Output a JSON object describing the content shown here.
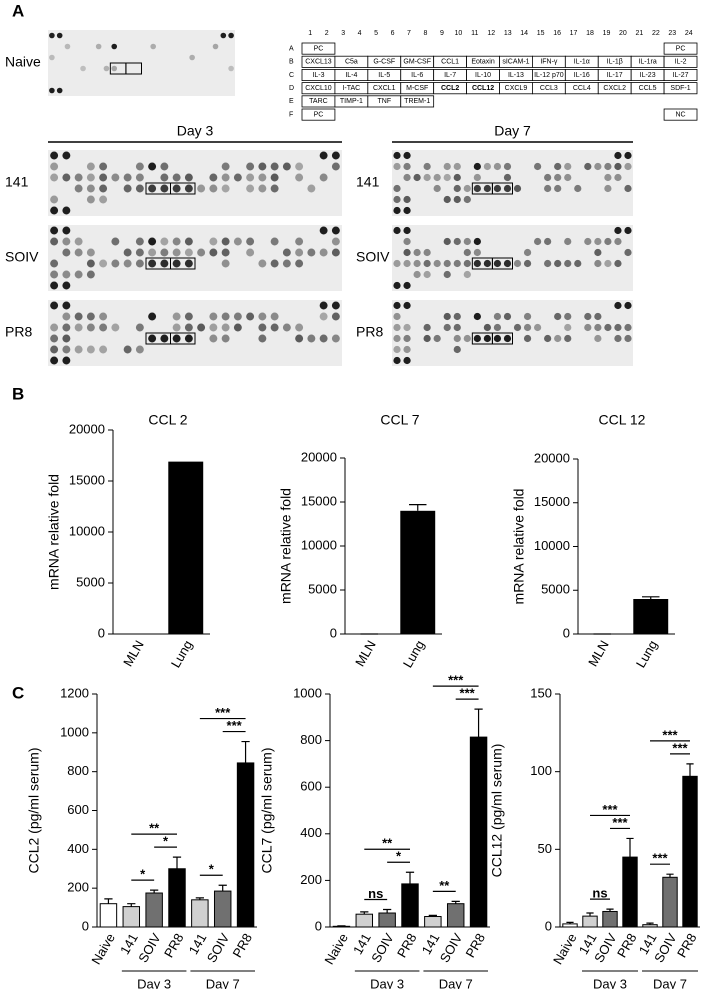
{
  "panel_labels": [
    "A",
    "B",
    "C"
  ],
  "array": {
    "naive_label": "Naive",
    "days": [
      "Day 3",
      "Day 7"
    ],
    "strains": [
      "141",
      "SOIV",
      "PR8"
    ],
    "columns": [
      1,
      2,
      3,
      4,
      5,
      6,
      7,
      8,
      9,
      10,
      11,
      12,
      13,
      14,
      15,
      16,
      17,
      18,
      19,
      20,
      21,
      22,
      23,
      24
    ],
    "row_letters": [
      "A",
      "B",
      "C",
      "D",
      "E",
      "F"
    ],
    "rows": [
      [
        {
          "label": "PC",
          "col": 1
        },
        {
          "label": "PC",
          "col": 23
        }
      ],
      [
        {
          "label": "CXCL13",
          "col": 1
        },
        {
          "label": "C5a",
          "col": 3
        },
        {
          "label": "G-CSF",
          "col": 5
        },
        {
          "label": "GM-CSF",
          "col": 7
        },
        {
          "label": "CCL1",
          "col": 9
        },
        {
          "label": "Eotaxin",
          "col": 11
        },
        {
          "label": "sICAM-1",
          "col": 13
        },
        {
          "label": "IFN-γ",
          "col": 15
        },
        {
          "label": "IL-1α",
          "col": 17
        },
        {
          "label": "IL-1β",
          "col": 19
        },
        {
          "label": "IL-1ra",
          "col": 21
        },
        {
          "label": "IL-2",
          "col": 23
        }
      ],
      [
        {
          "label": "IL-3",
          "col": 1
        },
        {
          "label": "IL-4",
          "col": 3
        },
        {
          "label": "IL-5",
          "col": 5
        },
        {
          "label": "IL-6",
          "col": 7
        },
        {
          "label": "IL-7",
          "col": 9
        },
        {
          "label": "IL-10",
          "col": 11
        },
        {
          "label": "IL-13",
          "col": 13
        },
        {
          "label": "IL-12 p70",
          "col": 15
        },
        {
          "label": "IL-16",
          "col": 17
        },
        {
          "label": "IL-17",
          "col": 19
        },
        {
          "label": "IL-23",
          "col": 21
        },
        {
          "label": "IL-27",
          "col": 23
        }
      ],
      [
        {
          "label": "CXCL10",
          "col": 1
        },
        {
          "label": "I-TAC",
          "col": 3
        },
        {
          "label": "CXCL1",
          "col": 5
        },
        {
          "label": "M-CSF",
          "col": 7
        },
        {
          "label": "CCL2",
          "col": 9,
          "bold": true
        },
        {
          "label": "CCL12",
          "col": 11,
          "bold": true
        },
        {
          "label": "CXCL9",
          "col": 13
        },
        {
          "label": "CCL3",
          "col": 15
        },
        {
          "label": "CCL4",
          "col": 17
        },
        {
          "label": "CXCL2",
          "col": 19
        },
        {
          "label": "CCL5",
          "col": 21
        },
        {
          "label": "SDF-1",
          "col": 23
        }
      ],
      [
        {
          "label": "TARC",
          "col": 1
        },
        {
          "label": "TIMP-1",
          "col": 3
        },
        {
          "label": "TNF",
          "col": 5
        },
        {
          "label": "TREM-1",
          "col": 7
        }
      ],
      [
        {
          "label": "PC",
          "col": 1
        },
        {
          "label": "NC",
          "col": 23
        }
      ]
    ]
  },
  "chart_data": [
    {
      "type": "bar",
      "title": "CCL 2",
      "ylabel": "mRNA relative fold",
      "categories": [
        "MLN",
        "Lung"
      ],
      "values": [
        0,
        16900
      ],
      "color": "#000000",
      "ylim": [
        0,
        20000
      ],
      "yticks": [
        0,
        5000,
        10000,
        15000,
        20000
      ]
    },
    {
      "type": "bar",
      "title": "CCL 7",
      "ylabel": "mRNA relative fold",
      "categories": [
        "MLN",
        "Lung"
      ],
      "values": [
        0,
        14000
      ],
      "errors": [
        0,
        700
      ],
      "color": "#000000",
      "ylim": [
        0,
        20000
      ],
      "yticks": [
        0,
        5000,
        10000,
        15000,
        20000
      ]
    },
    {
      "type": "bar",
      "title": "CCL 12",
      "ylabel": "mRNA relative fold",
      "categories": [
        "MLN",
        "Lung"
      ],
      "values": [
        0,
        4000
      ],
      "errors": [
        0,
        250
      ],
      "color": "#000000",
      "ylim": [
        0,
        20000
      ],
      "yticks": [
        0,
        5000,
        10000,
        15000,
        20000
      ]
    },
    {
      "type": "bar",
      "ylabel": "CCL2 (pg/ml serum)",
      "categories": [
        "Naive",
        "141",
        "SOIV",
        "PR8",
        "141",
        "SOIV",
        "PR8"
      ],
      "values": [
        120,
        105,
        175,
        300,
        140,
        185,
        845
      ],
      "errors": [
        25,
        15,
        15,
        60,
        10,
        30,
        110
      ],
      "colors": [
        "#ffffff",
        "#d0d0d0",
        "#707070",
        "#000000",
        "#d0d0d0",
        "#707070",
        "#000000"
      ],
      "ylim": [
        0,
        1200
      ],
      "yticks": [
        0,
        200,
        400,
        600,
        800,
        1000,
        1200
      ],
      "groups": [
        {
          "label": "Day 3",
          "from": 1,
          "to": 3
        },
        {
          "label": "Day 7",
          "from": 4,
          "to": 6
        }
      ],
      "annotations": [
        {
          "text": "*",
          "from": 1,
          "to": 2
        },
        {
          "text": "*",
          "from": 2,
          "to": 3
        },
        {
          "text": "**",
          "from": 1,
          "to": 3
        },
        {
          "text": "*",
          "from": 4,
          "to": 5
        },
        {
          "text": "***",
          "from": 5,
          "to": 6
        },
        {
          "text": "***",
          "from": 4,
          "to": 6
        }
      ]
    },
    {
      "type": "bar",
      "ylabel": "CCL7 (pg/ml serum)",
      "categories": [
        "Naive",
        "141",
        "SOIV",
        "PR8",
        "141",
        "SOIV",
        "PR8"
      ],
      "values": [
        3,
        55,
        60,
        185,
        45,
        100,
        815
      ],
      "errors": [
        2,
        10,
        15,
        50,
        5,
        10,
        120
      ],
      "colors": [
        "#ffffff",
        "#d0d0d0",
        "#707070",
        "#000000",
        "#d0d0d0",
        "#707070",
        "#000000"
      ],
      "ylim": [
        0,
        1000
      ],
      "yticks": [
        0,
        200,
        400,
        600,
        800,
        1000
      ],
      "groups": [
        {
          "label": "Day 3",
          "from": 1,
          "to": 3
        },
        {
          "label": "Day 7",
          "from": 4,
          "to": 6
        }
      ],
      "annotations": [
        {
          "text": "ns",
          "from": 1,
          "to": 2
        },
        {
          "text": "*",
          "from": 2,
          "to": 3
        },
        {
          "text": "**",
          "from": 1,
          "to": 3
        },
        {
          "text": "**",
          "from": 4,
          "to": 5
        },
        {
          "text": "***",
          "from": 5,
          "to": 6
        },
        {
          "text": "***",
          "from": 4,
          "to": 6
        }
      ]
    },
    {
      "type": "bar",
      "ylabel": "CCL12 (pg/ml serum)",
      "categories": [
        "Naive",
        "141",
        "SOIV",
        "PR8",
        "141",
        "SOIV",
        "PR8"
      ],
      "values": [
        2,
        7,
        10,
        45,
        1.5,
        32,
        97
      ],
      "errors": [
        1,
        2,
        1.5,
        12,
        1,
        2,
        8
      ],
      "colors": [
        "#ffffff",
        "#d0d0d0",
        "#707070",
        "#000000",
        "#d0d0d0",
        "#707070",
        "#000000"
      ],
      "ylim": [
        0,
        150
      ],
      "yticks": [
        0,
        50,
        100,
        150
      ],
      "groups": [
        {
          "label": "Day 3",
          "from": 1,
          "to": 3
        },
        {
          "label": "Day 7",
          "from": 4,
          "to": 6
        }
      ],
      "annotations": [
        {
          "text": "ns",
          "from": 1,
          "to": 2
        },
        {
          "text": "***",
          "from": 2,
          "to": 3
        },
        {
          "text": "***",
          "from": 1,
          "to": 3
        },
        {
          "text": "***",
          "from": 4,
          "to": 5
        },
        {
          "text": "***",
          "from": 5,
          "to": 6
        },
        {
          "text": "***",
          "from": 4,
          "to": 6
        }
      ]
    }
  ]
}
